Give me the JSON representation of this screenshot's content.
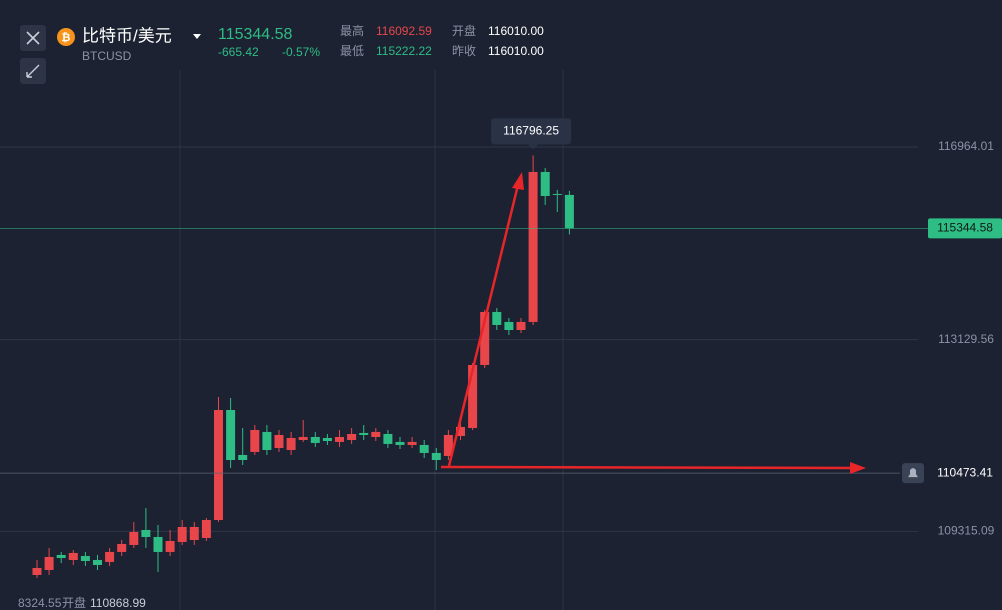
{
  "header": {
    "title": "比特币/美元",
    "symbol": "BTCUSD",
    "change": "-665.42",
    "change_pct": "-0.57%",
    "stats": [
      {
        "label": "最高",
        "value": "116092.59"
      },
      {
        "label": "开盘",
        "value": "116010.00"
      },
      {
        "label": "最低",
        "value": "115222.22"
      },
      {
        "label": "昨收",
        "value": "116010.00"
      }
    ],
    "footer": {
      "clipped": "8324.55",
      "label": "开盘",
      "value": "110868.99"
    }
  },
  "chart_data": {
    "type": "candlestick",
    "up_color": "#e8464a",
    "down_color": "#2ebd85",
    "ylim": [
      107750,
      119889
    ],
    "yticks": [
      116964.01,
      113129.56,
      109315.09
    ],
    "grid": true,
    "alert_price": 110473.41,
    "open": [
      108447,
      108546,
      108845,
      108745,
      108825,
      108745,
      108706,
      108905,
      109044,
      109342,
      109203,
      108905,
      109104,
      109143,
      109183,
      109541,
      111730,
      110835,
      110895,
      111293,
      110974,
      110934,
      111133,
      111193,
      111173,
      111094,
      111133,
      111273,
      111193,
      111253,
      111094,
      111034,
      111034,
      110875,
      110815,
      111213,
      111372,
      112626,
      113681,
      113482,
      113322,
      113482,
      116467,
      116029,
      116010.0
    ],
    "high": [
      108745,
      108984,
      108905,
      108944,
      108905,
      108845,
      108984,
      109143,
      109502,
      109780,
      109442,
      109342,
      109541,
      109502,
      109581,
      111989,
      111969,
      111372,
      111432,
      111432,
      111332,
      111293,
      111531,
      111293,
      111253,
      111332,
      111372,
      111432,
      111372,
      111332,
      111193,
      111193,
      111133,
      110974,
      111332,
      111531,
      112666,
      113720,
      113760,
      113561,
      113561,
      116796.25,
      116546,
      116108,
      116092.59
    ],
    "low": [
      108387,
      108447,
      108686,
      108646,
      108626,
      108546,
      108626,
      108825,
      108984,
      108984,
      108507,
      108825,
      109044,
      109044,
      109123,
      109502,
      110576,
      110636,
      110835,
      110835,
      110895,
      110835,
      111094,
      110994,
      111034,
      110994,
      111054,
      111133,
      111113,
      110974,
      110954,
      110974,
      110775,
      110536,
      110735,
      111133,
      111332,
      112566,
      113322,
      113223,
      113263,
      113422,
      115810,
      115671,
      115222.22
    ],
    "close": [
      108586,
      108805,
      108785,
      108885,
      108725,
      108646,
      108905,
      109064,
      109303,
      109203,
      108905,
      109123,
      109402,
      109402,
      109541,
      111730,
      110735,
      110735,
      111332,
      110934,
      111233,
      111173,
      111193,
      111074,
      111113,
      111193,
      111253,
      111233,
      111293,
      111054,
      111034,
      111094,
      110875,
      110735,
      111233,
      111392,
      112626,
      113681,
      113422,
      113322,
      113482,
      116467,
      115989,
      116009,
      115344.58
    ]
  }
}
